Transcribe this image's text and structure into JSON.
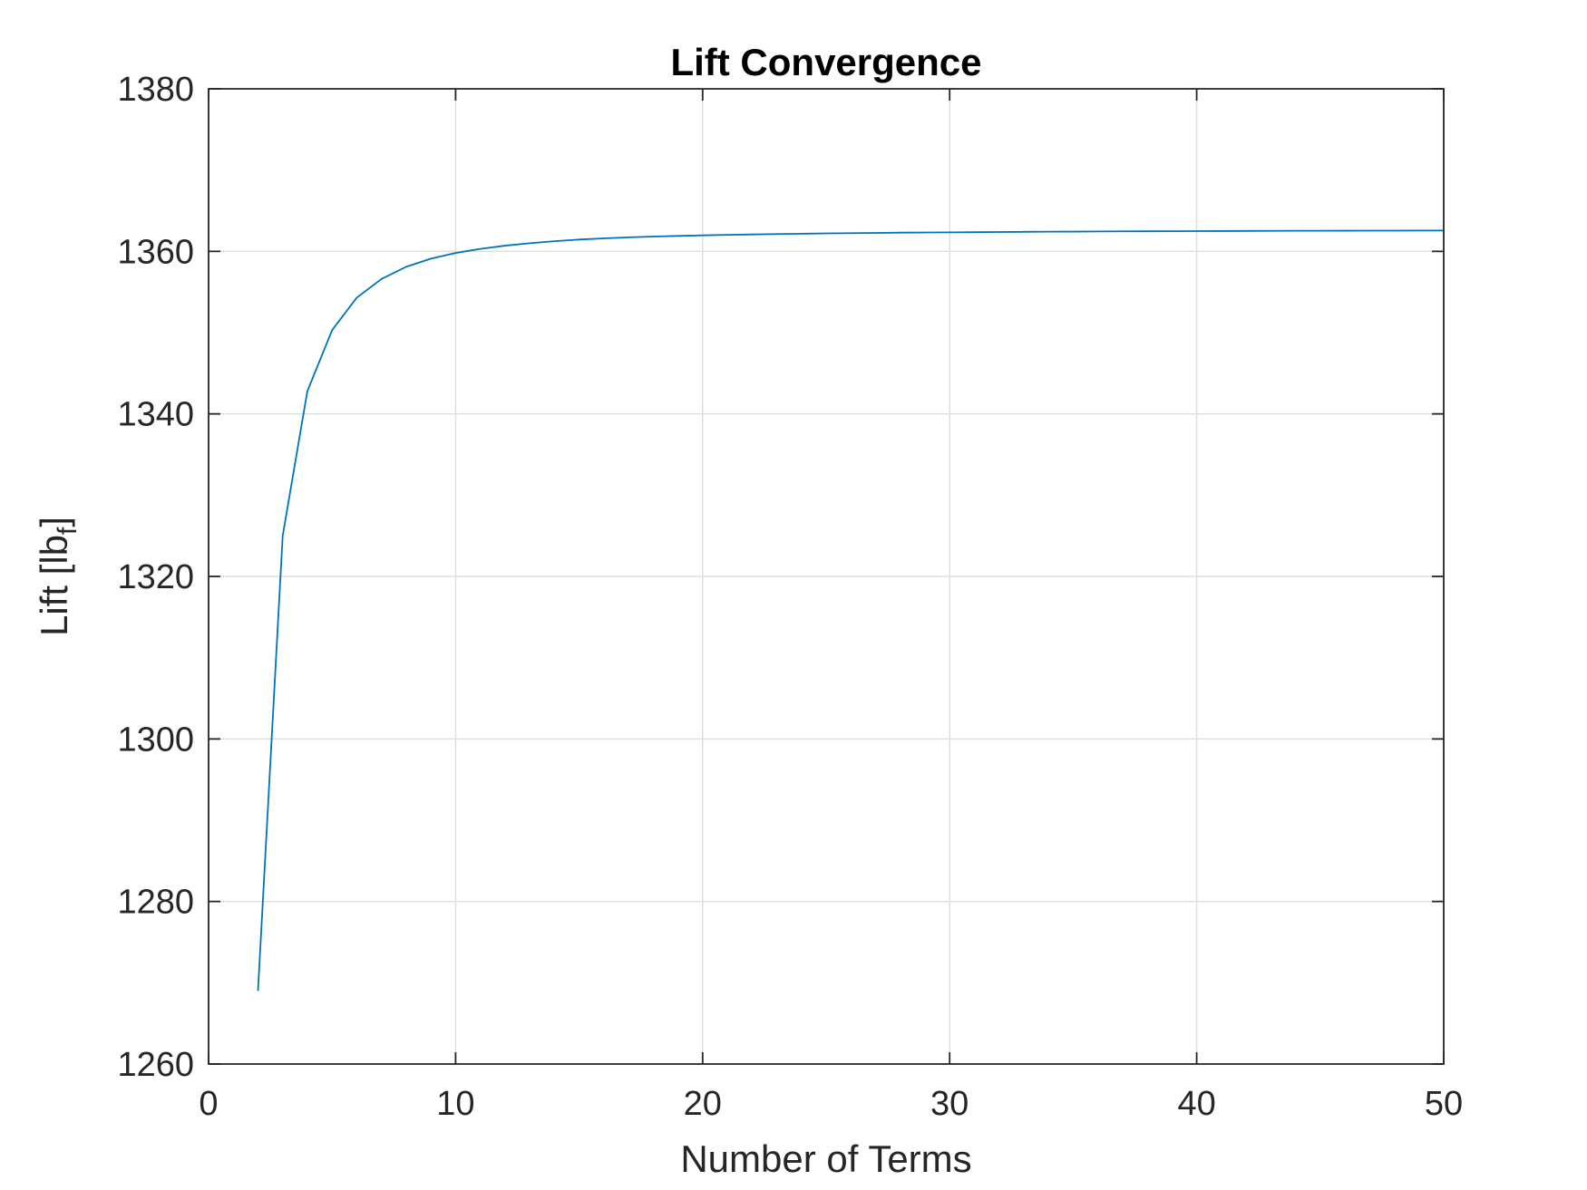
{
  "chart_data": {
    "type": "line",
    "title": "Lift Convergence",
    "xlabel": "Number of Terms",
    "ylabel_main": "Lift [lb",
    "ylabel_sub": "f",
    "ylabel_close": "]",
    "xlim": [
      0,
      50
    ],
    "ylim": [
      1260,
      1380
    ],
    "xticks": [
      0,
      10,
      20,
      30,
      40,
      50
    ],
    "yticks": [
      1260,
      1280,
      1300,
      1320,
      1340,
      1360,
      1380
    ],
    "grid": true,
    "series": [
      {
        "color": "#0072bd",
        "x": [
          2,
          3,
          4,
          5,
          6,
          7,
          8,
          9,
          10,
          11,
          12,
          13,
          14,
          15,
          16,
          17,
          18,
          19,
          20,
          21,
          22,
          23,
          24,
          25,
          26,
          27,
          28,
          29,
          30,
          31,
          32,
          33,
          34,
          35,
          36,
          37,
          38,
          39,
          40,
          41,
          42,
          43,
          44,
          45,
          46,
          47,
          48,
          49,
          50
        ],
        "y": [
          1269.0,
          1325.0,
          1342.8,
          1350.3,
          1354.3,
          1356.6,
          1358.1,
          1359.1,
          1359.8,
          1360.3,
          1360.7,
          1361.0,
          1361.25,
          1361.45,
          1361.6,
          1361.72,
          1361.82,
          1361.9,
          1361.97,
          1362.03,
          1362.08,
          1362.13,
          1362.17,
          1362.21,
          1362.24,
          1362.27,
          1362.3,
          1362.32,
          1362.34,
          1362.36,
          1362.38,
          1362.4,
          1362.42,
          1362.43,
          1362.45,
          1362.46,
          1362.47,
          1362.48,
          1362.49,
          1362.5,
          1362.51,
          1362.52,
          1362.53,
          1362.53,
          1362.54,
          1362.55,
          1362.55,
          1362.56,
          1362.56
        ]
      }
    ]
  }
}
